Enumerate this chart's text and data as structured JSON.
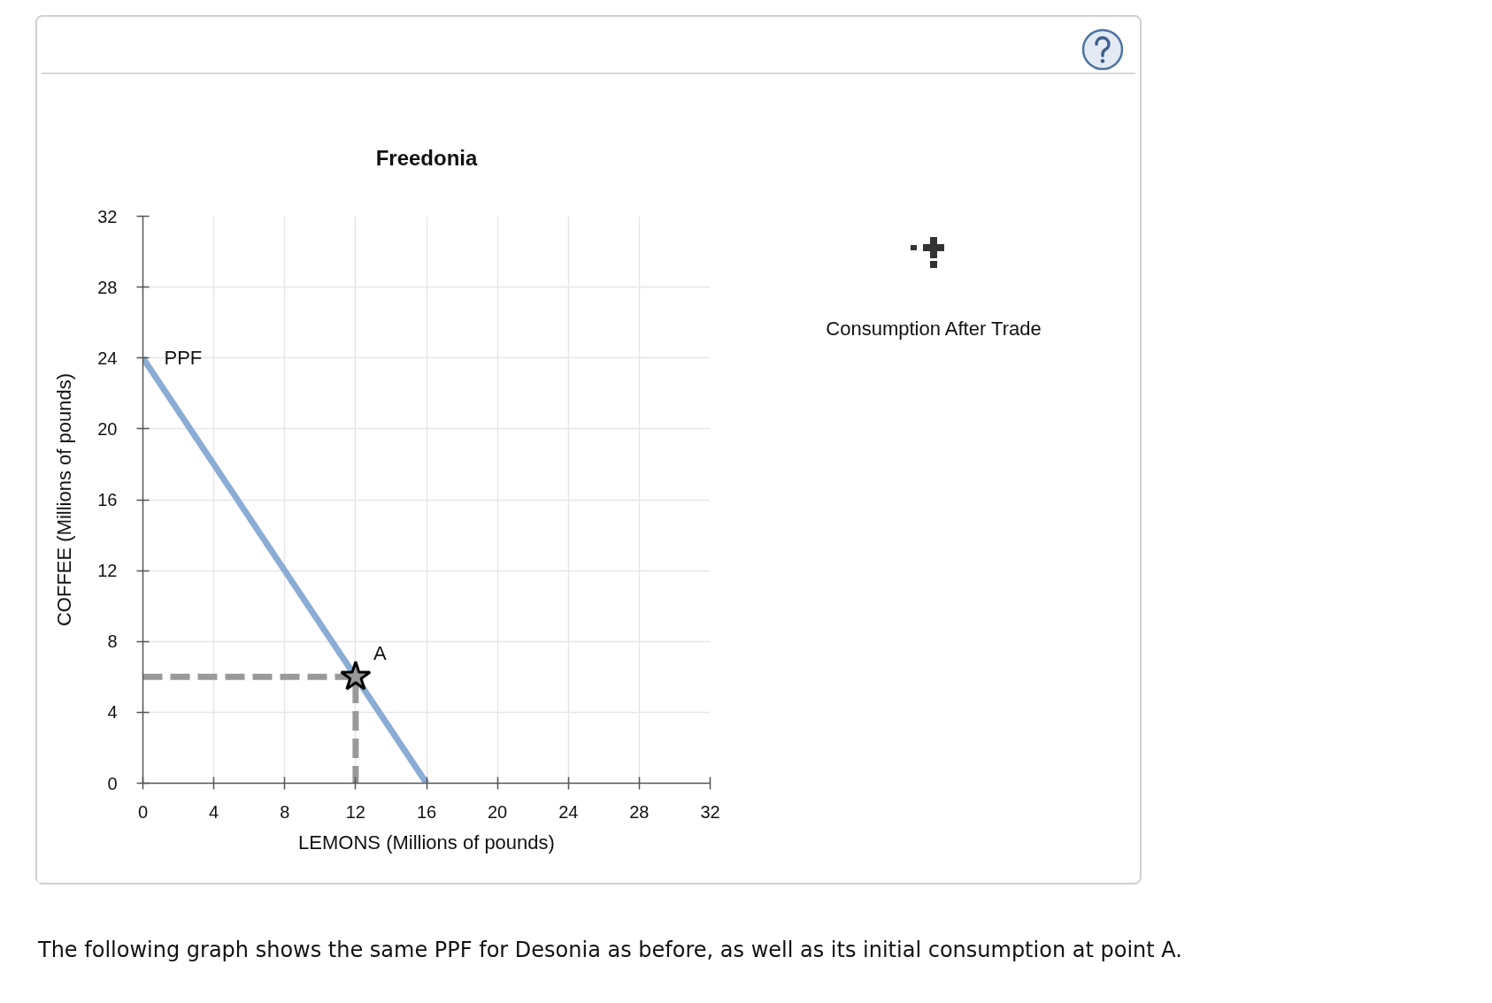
{
  "chart_data": {
    "type": "line",
    "title": "Freedonia",
    "xlabel": "LEMONS (Millions of pounds)",
    "ylabel": "COFFEE (Millions of pounds)",
    "xlim": [
      0,
      32
    ],
    "ylim": [
      0,
      32
    ],
    "xticks": [
      0,
      4,
      8,
      12,
      16,
      20,
      24,
      28,
      32
    ],
    "yticks": [
      0,
      4,
      8,
      12,
      16,
      20,
      24,
      28,
      32
    ],
    "grid": true,
    "series": [
      {
        "name": "PPF",
        "color": "#8aadd5",
        "x": [
          0,
          16
        ],
        "values": [
          24,
          0
        ]
      },
      {
        "line_style": "dashed",
        "color": "#999999",
        "x": [
          0,
          12,
          12
        ],
        "values": [
          6,
          6,
          0
        ]
      },
      {
        "name": "A",
        "type": "scatter",
        "marker": "star",
        "color": "#999999",
        "x": [
          12
        ],
        "values": [
          6
        ]
      }
    ],
    "annotations": [
      "Consumption After Trade",
      "The following graph shows the same PPF for Desonia as before, as well as its initial consumption at point A."
    ]
  }
}
